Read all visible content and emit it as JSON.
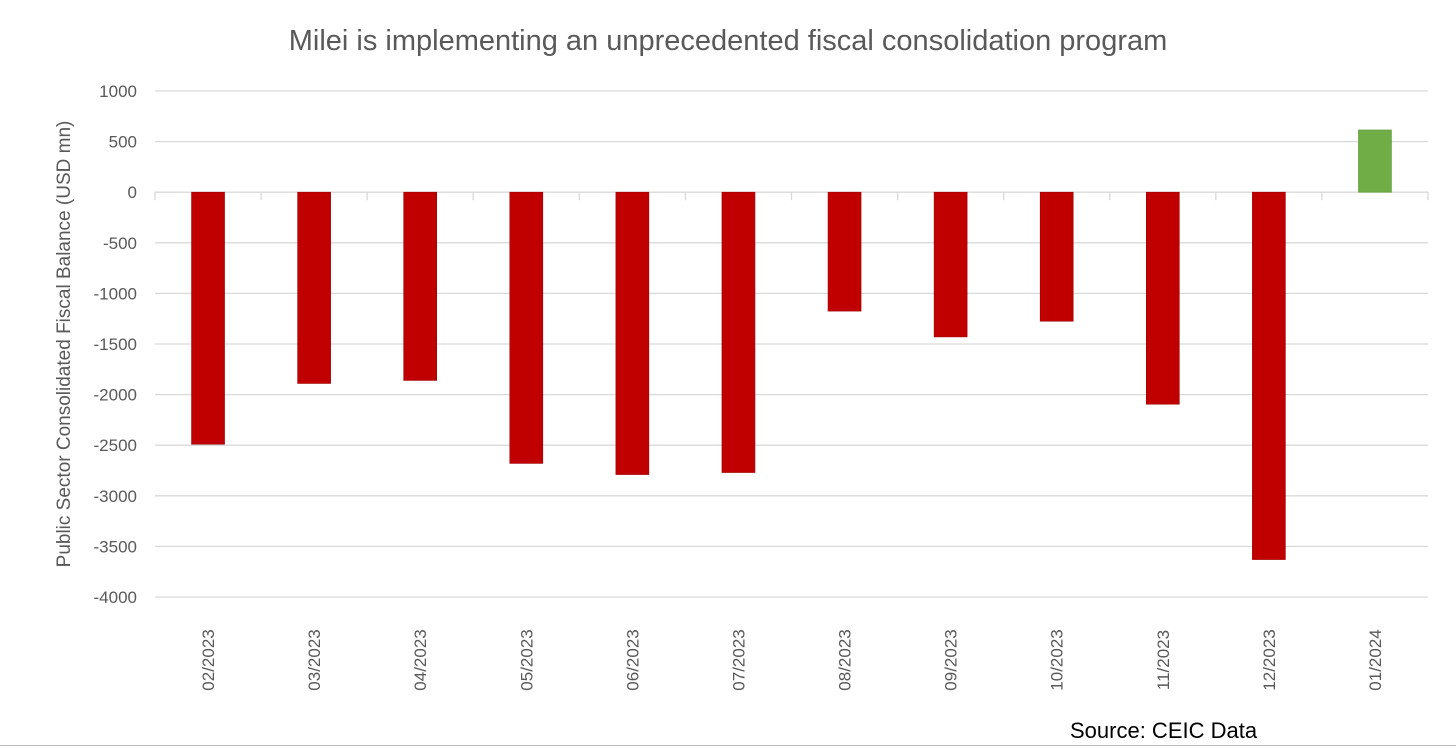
{
  "chart_data": {
    "type": "bar",
    "title": "Milei is implementing an unprecedented fiscal consolidation program",
    "xlabel": "",
    "ylabel": "Public Sector Consolidated Fiscal Balance (USD mn)",
    "ylim": [
      -4000,
      1000
    ],
    "yticks": [
      1000,
      500,
      0,
      -500,
      -1000,
      -1500,
      -2000,
      -2500,
      -3000,
      -3500,
      -4000
    ],
    "grid": true,
    "categories": [
      "02/2023",
      "03/2023",
      "04/2023",
      "05/2023",
      "06/2023",
      "07/2023",
      "08/2023",
      "09/2023",
      "10/2023",
      "11/2023",
      "12/2023",
      "01/2024"
    ],
    "values": [
      -2490,
      -1890,
      -1860,
      -2680,
      -2790,
      -2770,
      -1175,
      -1430,
      -1275,
      -2095,
      -3630,
      615
    ],
    "colors": {
      "negative": "#C00000",
      "positive": "#70AD47"
    },
    "source": "Source: CEIC Data"
  }
}
